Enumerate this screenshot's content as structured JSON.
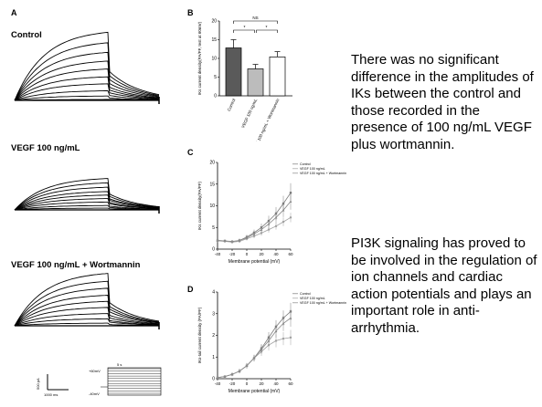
{
  "panel_a": {
    "letter": "A",
    "conditions": [
      "Control",
      "VEGF 100 ng/mL",
      "VEGF 100 ng/mL + Wortmannin"
    ],
    "scale": {
      "current": "500 pA",
      "time": "1000 ms"
    },
    "protocol": {
      "top": "+60mV",
      "bottom": "-40mV",
      "duration": "5 s"
    }
  },
  "text": {
    "p1": "There was no significant difference in the amplitudes of IKs between the control and those recorded in the presence of 100 ng/mL VEGF plus wortmannin.",
    "p2": "PI3K signaling has proved to be involved in the regulation of ion channels and cardiac action potentials and plays an important role in anti-arrhythmia."
  },
  "colors": {
    "control": "#5a5a5a",
    "vegf": "#bcbcbc",
    "wortmannin": "#ffffff"
  },
  "chart_data": [
    {
      "panel": "B",
      "type": "bar",
      "ylabel": "IKs current density(PA/PF, test at 60mV)",
      "ylim": [
        0,
        20
      ],
      "yticks": [
        0,
        5,
        10,
        15,
        20
      ],
      "categories": [
        "Control",
        "VEGF 100 ng/mL",
        "VEGF 100 ng/mL + Wortmannin"
      ],
      "values": [
        12.8,
        7.2,
        10.4
      ],
      "errors": [
        2.2,
        1.2,
        1.4
      ],
      "annotations": {
        "ns": "NS",
        "star1": "*",
        "star2": "*"
      }
    },
    {
      "panel": "C",
      "type": "line",
      "xlabel": "Membrane potential (mV)",
      "ylabel": "IKs current density(PA/PF)",
      "ylim": [
        0,
        20
      ],
      "yticks": [
        0,
        5,
        10,
        15,
        20
      ],
      "xticks": [
        -40,
        -20,
        0,
        20,
        40,
        60
      ],
      "x": [
        -40,
        -30,
        -20,
        -10,
        0,
        10,
        20,
        30,
        40,
        50,
        60
      ],
      "series": [
        {
          "name": "Control",
          "values": [
            2.0,
            1.9,
            1.7,
            2.0,
            2.8,
            3.8,
            5.0,
            6.5,
            8.2,
            10.5,
            13.0
          ],
          "errors": [
            0.3,
            0.3,
            0.3,
            0.4,
            0.5,
            0.7,
            0.9,
            1.2,
            1.5,
            1.8,
            2.2
          ]
        },
        {
          "name": "VEGF 100 ng/mL",
          "values": [
            1.9,
            1.8,
            1.6,
            1.8,
            2.4,
            3.0,
            3.7,
            4.5,
            5.3,
            6.3,
            7.3
          ],
          "errors": [
            0.3,
            0.3,
            0.3,
            0.3,
            0.4,
            0.5,
            0.6,
            0.7,
            0.8,
            1.0,
            1.1
          ]
        },
        {
          "name": "VEGF 100 ng/mL + Wortmannin",
          "values": [
            2.0,
            1.9,
            1.8,
            2.0,
            2.6,
            3.5,
            4.5,
            5.8,
            7.3,
            9.0,
            11.0
          ],
          "errors": [
            0.3,
            0.3,
            0.3,
            0.4,
            0.5,
            0.6,
            0.8,
            1.0,
            1.3,
            1.6,
            1.9
          ]
        }
      ]
    },
    {
      "panel": "D",
      "type": "line",
      "xlabel": "Membrane potential (mV)",
      "ylabel": "IKs-tail current density (PA/PF)",
      "ylim": [
        0,
        4
      ],
      "yticks": [
        0,
        1,
        2,
        3,
        4
      ],
      "xticks": [
        -40,
        -20,
        0,
        20,
        40,
        60
      ],
      "x": [
        -40,
        -30,
        -20,
        -10,
        0,
        10,
        20,
        30,
        40,
        50,
        60
      ],
      "series": [
        {
          "name": "Control",
          "values": [
            0.05,
            0.1,
            0.2,
            0.35,
            0.6,
            0.95,
            1.4,
            1.9,
            2.4,
            2.8,
            3.1
          ],
          "errors": [
            0.05,
            0.05,
            0.08,
            0.1,
            0.12,
            0.15,
            0.2,
            0.25,
            0.3,
            0.35,
            0.4
          ]
        },
        {
          "name": "VEGF 100 ng/mL",
          "values": [
            0.05,
            0.1,
            0.2,
            0.35,
            0.6,
            0.95,
            1.25,
            1.55,
            1.75,
            1.85,
            1.9
          ],
          "errors": [
            0.05,
            0.05,
            0.08,
            0.1,
            0.12,
            0.15,
            0.2,
            0.25,
            0.3,
            0.3,
            0.35
          ]
        },
        {
          "name": "VEGF 100 ng/mL + Wortmannin",
          "values": [
            0.05,
            0.1,
            0.2,
            0.35,
            0.6,
            0.95,
            1.35,
            1.75,
            2.2,
            2.55,
            2.8
          ],
          "errors": [
            0.05,
            0.05,
            0.08,
            0.1,
            0.12,
            0.15,
            0.2,
            0.25,
            0.3,
            0.35,
            0.4
          ]
        }
      ]
    }
  ]
}
